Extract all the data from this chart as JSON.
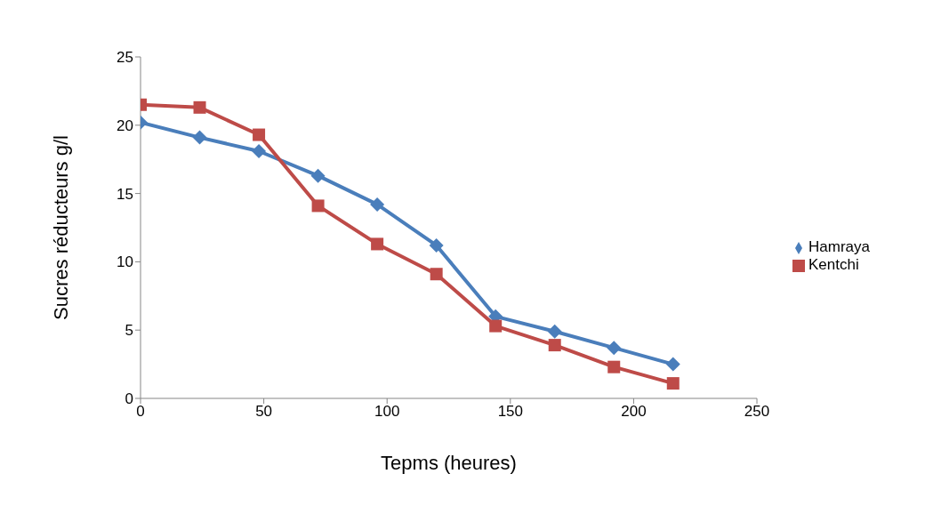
{
  "chart_data": {
    "type": "line",
    "xlabel": "Tepms (heures)",
    "ylabel": "Sucres réducteurs g/l",
    "x": [
      0,
      24,
      48,
      72,
      96,
      120,
      144,
      168,
      192,
      216
    ],
    "series": [
      {
        "name": "Hamraya",
        "color": "#4a7ebb",
        "marker": "diamond",
        "values": [
          20.2,
          19.1,
          18.1,
          16.3,
          14.2,
          11.2,
          6.0,
          4.9,
          3.7,
          2.5
        ]
      },
      {
        "name": "Kentchi",
        "color": "#be4b48",
        "marker": "square",
        "values": [
          21.5,
          21.3,
          19.3,
          14.1,
          11.3,
          9.1,
          5.3,
          3.9,
          2.3,
          1.1
        ]
      }
    ],
    "xlim": [
      0,
      250
    ],
    "xticks": [
      0,
      50,
      100,
      150,
      200,
      250
    ],
    "ylim": [
      0,
      25
    ],
    "yticks": [
      0,
      5,
      10,
      15,
      20,
      25
    ],
    "grid": false,
    "legend": "right"
  }
}
